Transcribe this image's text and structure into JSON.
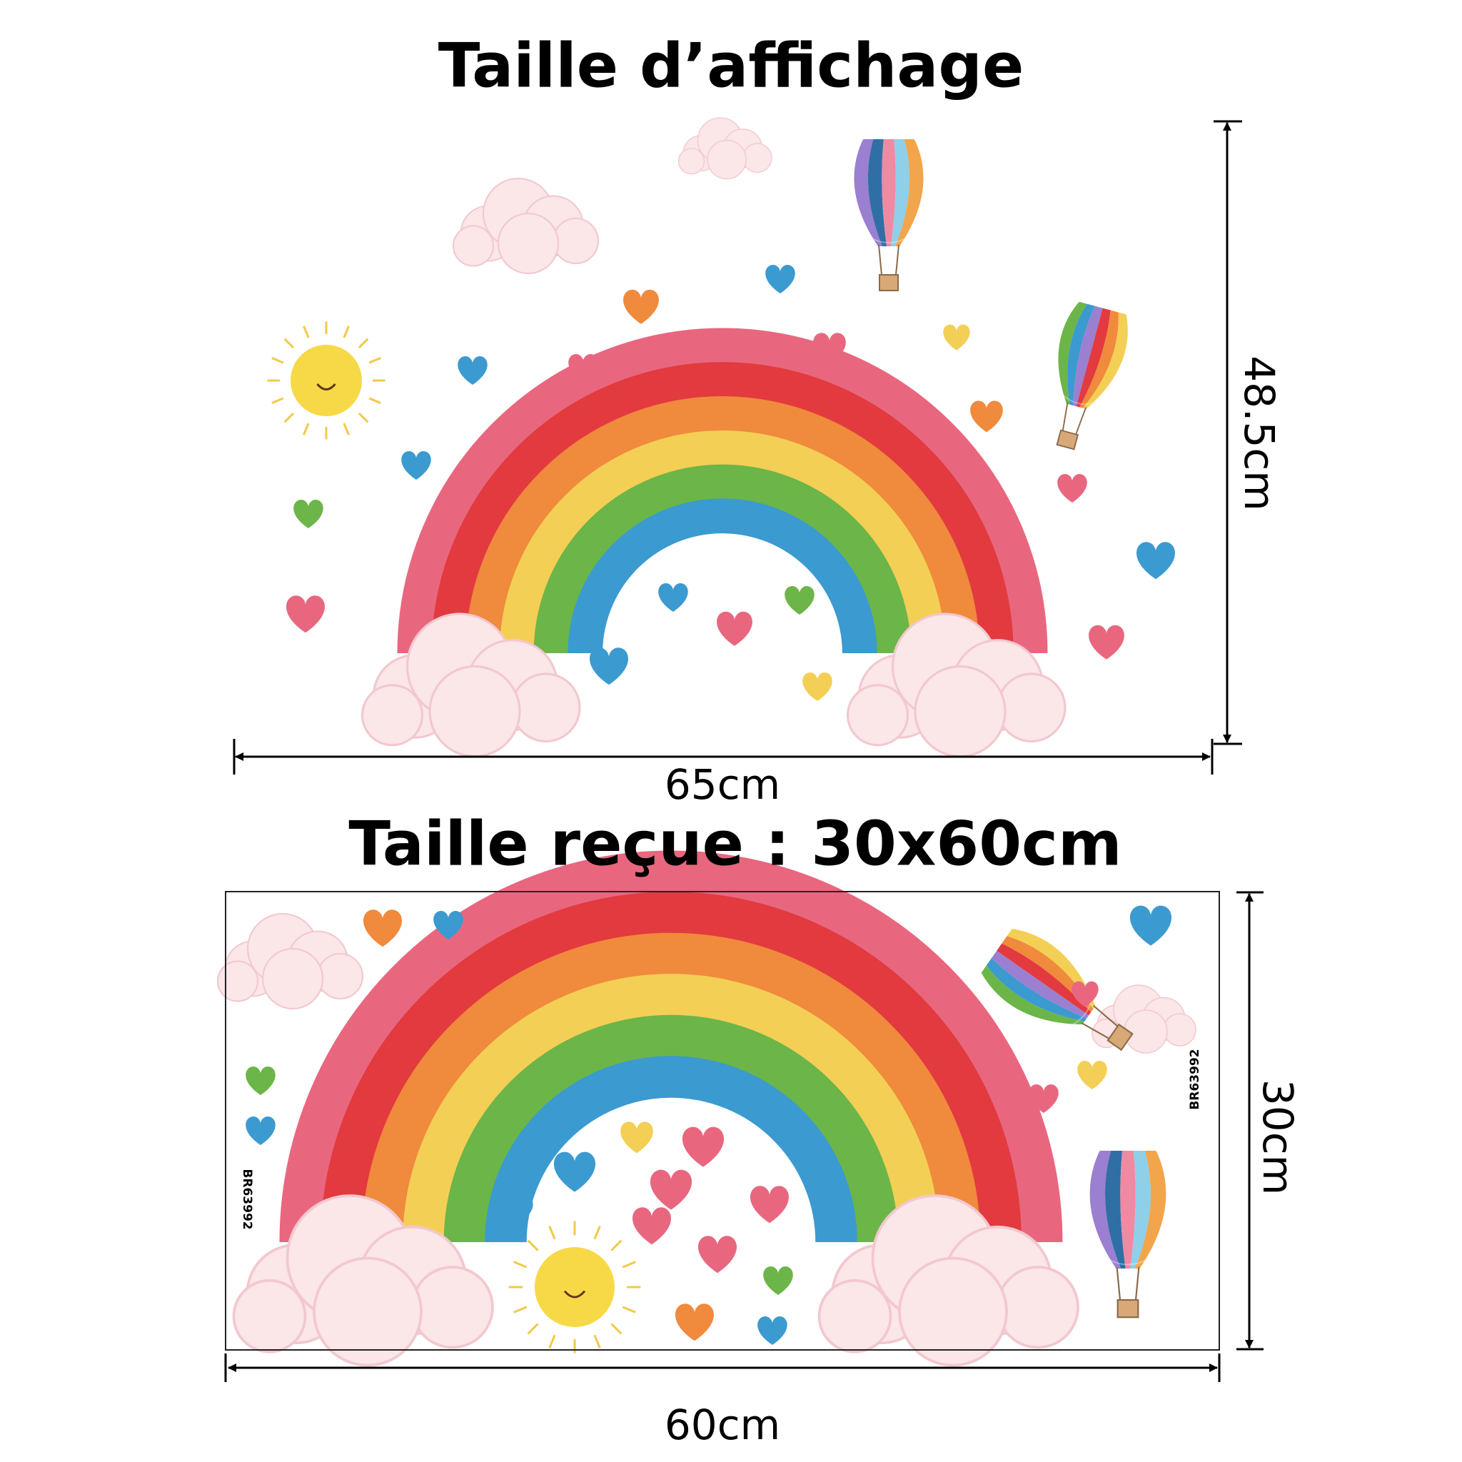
{
  "top": {
    "title": "Taille d’affichage",
    "height_label": "48.5cm",
    "width_label": "65cm"
  },
  "bottom": {
    "title": "Taille reçue : 30x60cm",
    "height_label": "30cm",
    "width_label": "60cm",
    "codes": [
      "BR63992",
      "BR63992"
    ]
  }
}
